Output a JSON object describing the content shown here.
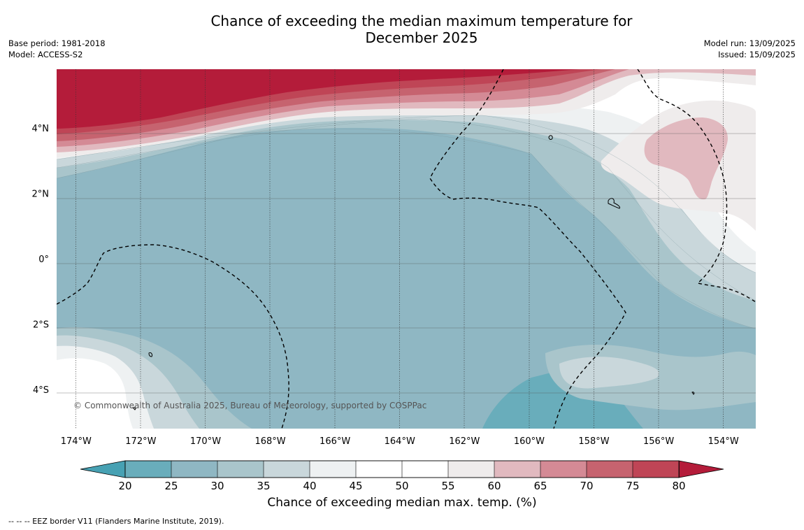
{
  "header": {
    "title_line1": "Chance of exceeding the median maximum temperature for",
    "title_line2": "December 2025",
    "base_period": "Base period: 1981-2018",
    "model": "Model: ACCESS-S2",
    "model_run": "Model run: 13/09/2025",
    "issued": "Issued: 15/09/2025"
  },
  "map": {
    "lon_range": [
      -174.6,
      -153.0
    ],
    "lat_range": [
      -5.2,
      5.8
    ],
    "lon_ticks": [
      {
        "value": -174,
        "label": "174°W"
      },
      {
        "value": -172,
        "label": "172°W"
      },
      {
        "value": -170,
        "label": "170°W"
      },
      {
        "value": -168,
        "label": "168°W"
      },
      {
        "value": -166,
        "label": "166°W"
      },
      {
        "value": -164,
        "label": "164°W"
      },
      {
        "value": -162,
        "label": "162°W"
      },
      {
        "value": -160,
        "label": "160°W"
      },
      {
        "value": -158,
        "label": "158°W"
      },
      {
        "value": -156,
        "label": "156°W"
      },
      {
        "value": -154,
        "label": "154°W"
      }
    ],
    "lat_ticks": [
      {
        "value": 4,
        "label": "4°N"
      },
      {
        "value": 2,
        "label": "2°N"
      },
      {
        "value": 0,
        "label": "0°"
      },
      {
        "value": -2,
        "label": "2°S"
      },
      {
        "value": -4,
        "label": "4°S"
      }
    ],
    "copyright": "© Commonwealth of Australia 2025, Bureau of Meteorology, supported by COSPPac"
  },
  "colorbar": {
    "ticks": [
      "20",
      "25",
      "30",
      "35",
      "40",
      "45",
      "50",
      "55",
      "60",
      "65",
      "70",
      "75",
      "80"
    ],
    "colors": [
      "#69adbb",
      "#8fb7c3",
      "#a9c5cb",
      "#c9d7db",
      "#eef1f2",
      "#ffffff",
      "#ffffff",
      "#efecec",
      "#e1b9bf",
      "#d48a95",
      "#c6636f",
      "#bf4556"
    ],
    "low_color": "#47a1b3",
    "high_color": "#b41c3a",
    "label": "Chance of exceeding median max. temp. (%)"
  },
  "footnote": "--  --  -- EEZ border V11 (Flanders Marine Institute, 2019)."
}
